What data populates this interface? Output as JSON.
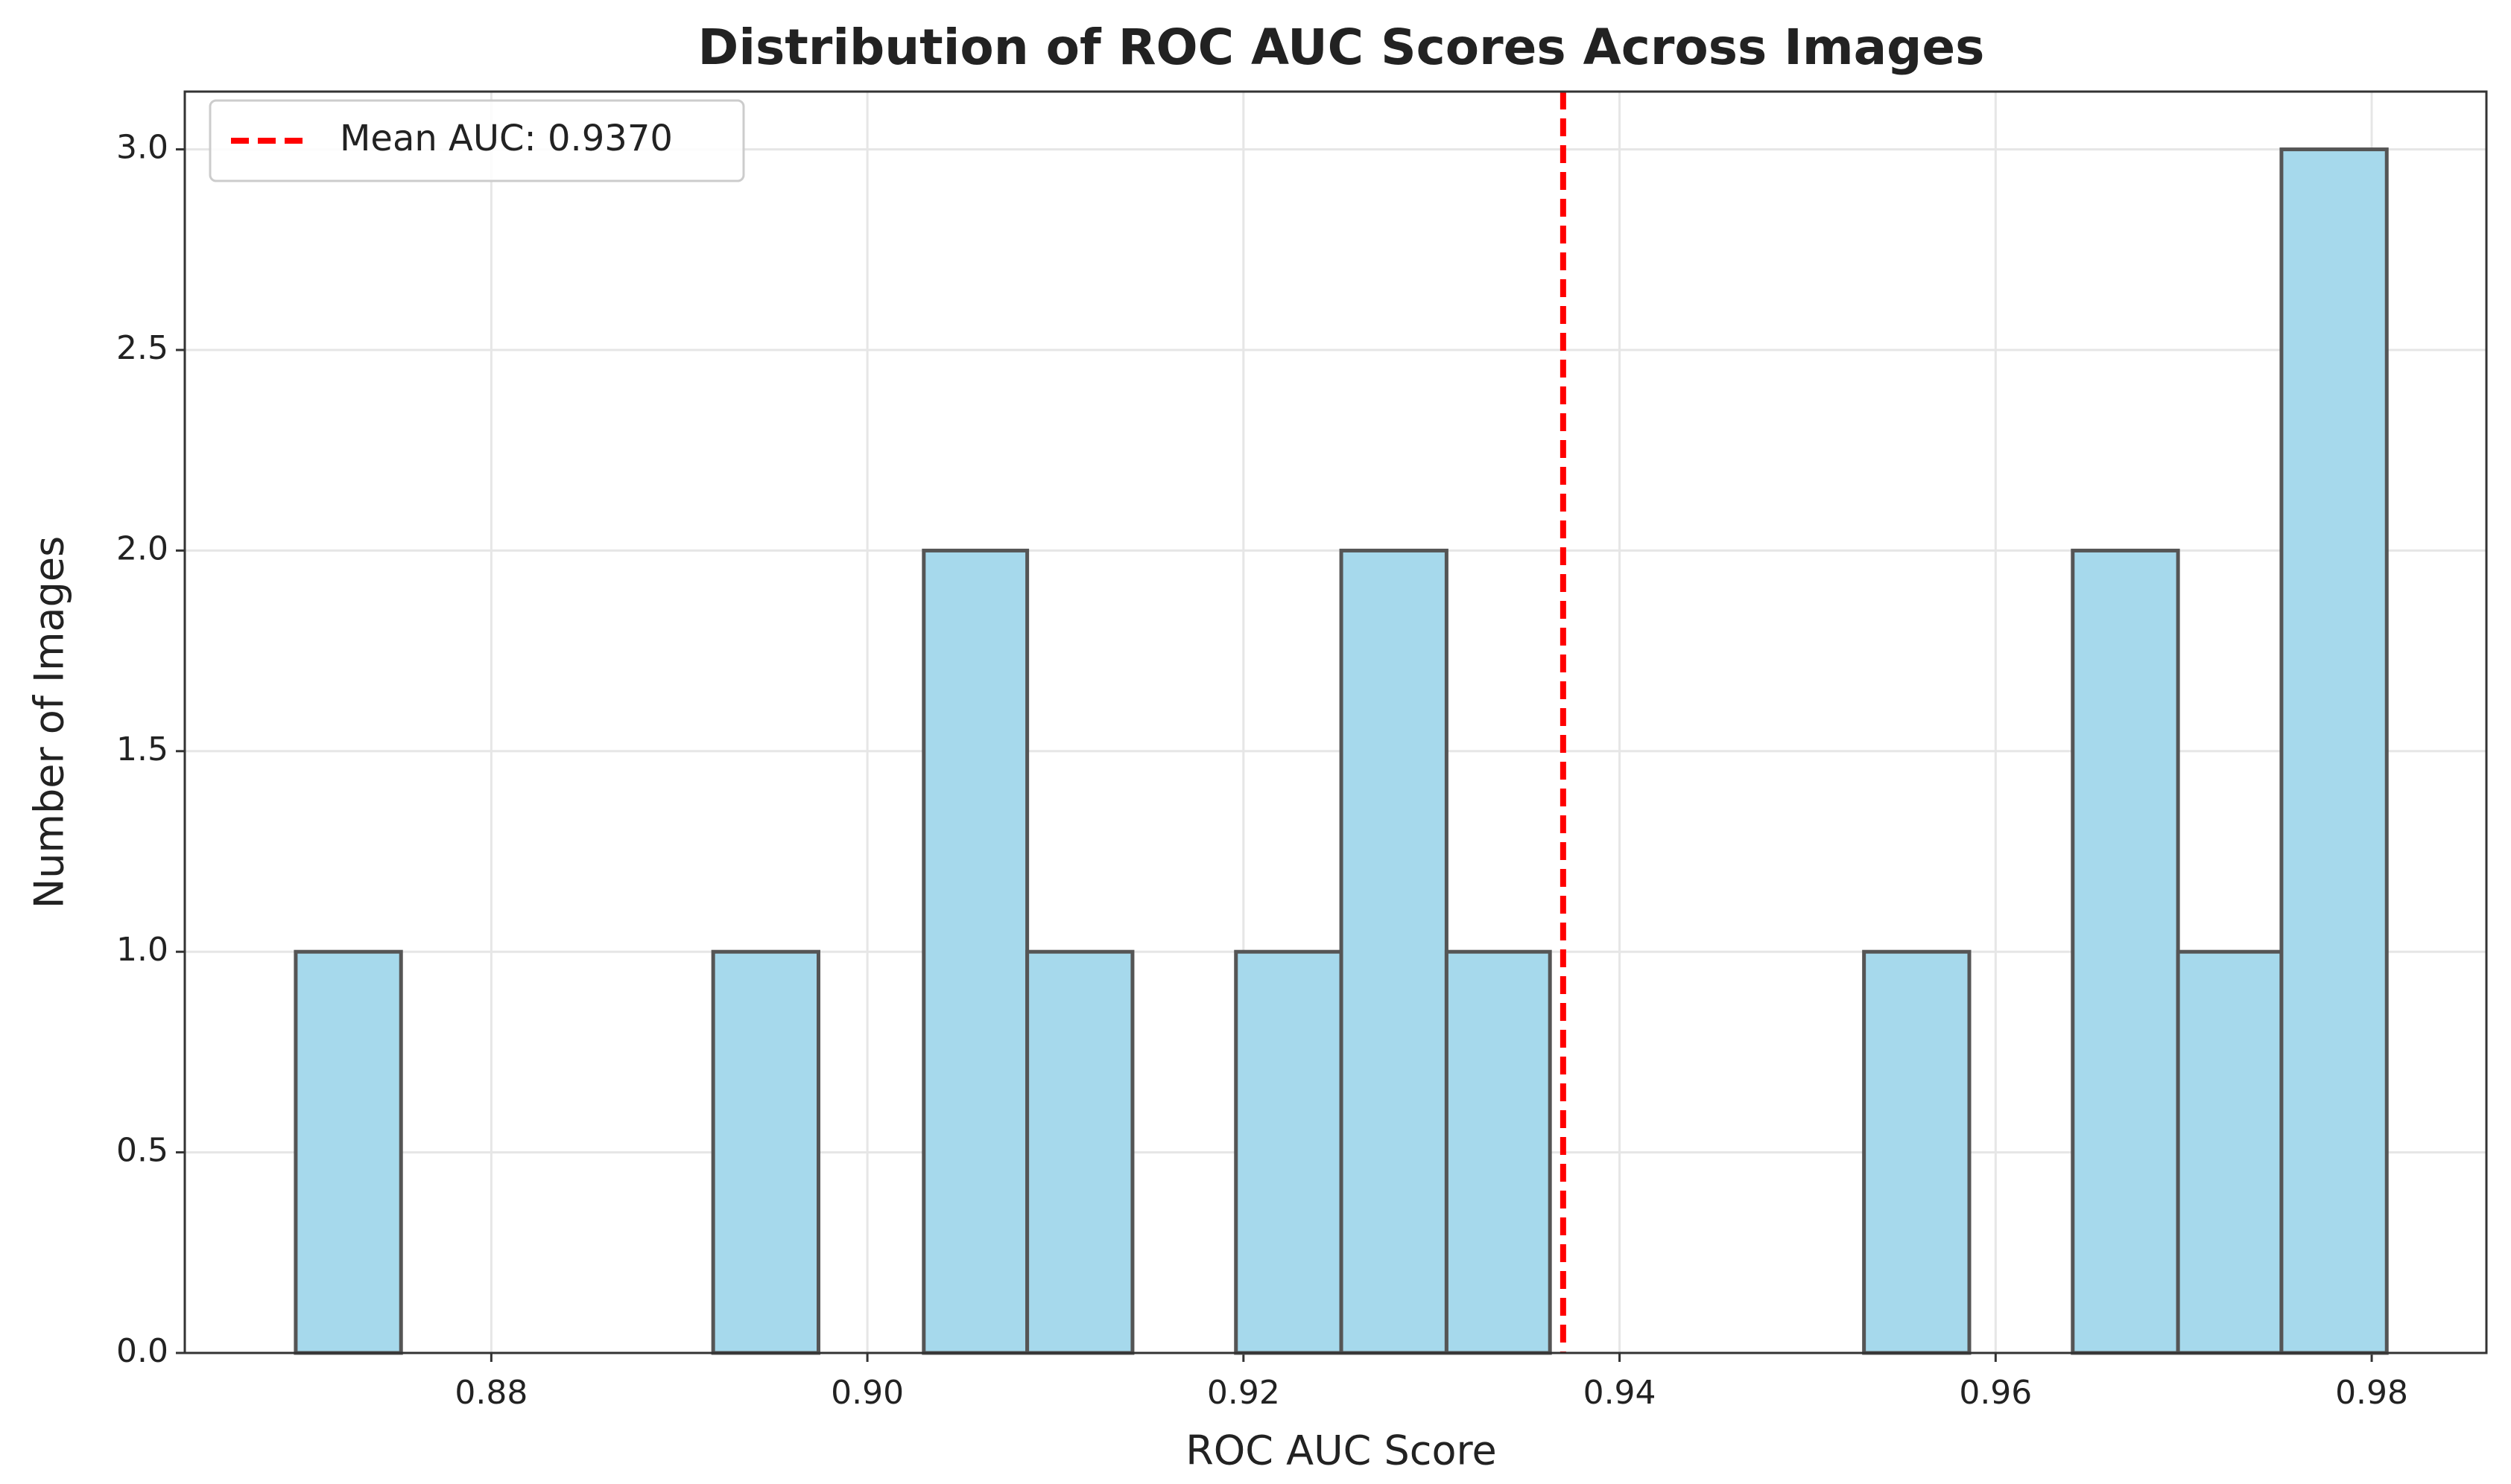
{
  "chart_data": {
    "type": "histogram",
    "title": "Distribution of ROC AUC Scores Across Images",
    "x_label": "ROC AUC Score",
    "y_label": "Number of Images",
    "bins": [
      0.8696,
      0.8752,
      0.8807,
      0.8863,
      0.8918,
      0.8974,
      0.903,
      0.9085,
      0.9141,
      0.9196,
      0.9252,
      0.9308,
      0.9363,
      0.9419,
      0.9474,
      0.953,
      0.9586,
      0.9641,
      0.9697,
      0.9752,
      0.9808
    ],
    "values": [
      1,
      0,
      0,
      0,
      1,
      0,
      2,
      1,
      0,
      1,
      2,
      1,
      0,
      0,
      0,
      1,
      0,
      2,
      1,
      3
    ],
    "color": "#a6d9ec",
    "edge_color": "#555555",
    "xlim": [
      0.8637,
      0.9861
    ],
    "ylim": [
      0,
      3.144
    ],
    "xticks": [
      0.88,
      {
        "value": 0.9,
        "label": "0.90"
      },
      0.92,
      0.94,
      0.96,
      0.98
    ],
    "yticks": [
      {
        "value": 0,
        "label": "0.0"
      },
      0.5,
      {
        "value": 1,
        "label": "1.0"
      },
      1.5,
      {
        "value": 2,
        "label": "2.0"
      },
      2.5,
      {
        "value": 3,
        "label": "3.0"
      }
    ],
    "grid": true,
    "legend_position": "upper left",
    "reference_lines": [
      {
        "name": "Mean AUC: 0.9370",
        "value": 0.937,
        "color": "#ff0000"
      }
    ]
  }
}
